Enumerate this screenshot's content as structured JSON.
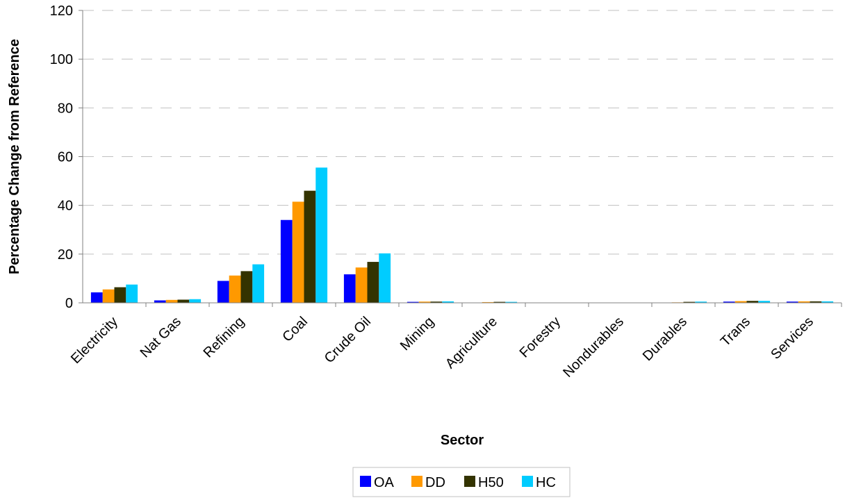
{
  "chart_data": {
    "type": "bar",
    "title": "",
    "xlabel": "Sector",
    "ylabel": "Percentage Change from Reference",
    "ylim": [
      0,
      120
    ],
    "yticks": [
      0,
      20,
      40,
      60,
      80,
      100,
      120
    ],
    "grid": true,
    "legend_position": "bottom",
    "categories": [
      "Electricity",
      "Nat Gas",
      "Refining",
      "Coal",
      "Crude Oil",
      "Mining",
      "Agriculture",
      "Forestry",
      "Nondurables",
      "Durables",
      "Trans",
      "Services"
    ],
    "series": [
      {
        "name": "OA",
        "color": "#0000FF",
        "values": [
          4.3,
          1.0,
          9.0,
          34.0,
          11.7,
          0.4,
          0.1,
          0.0,
          0.0,
          0.1,
          0.5,
          0.5
        ]
      },
      {
        "name": "DD",
        "color": "#FF9900",
        "values": [
          5.5,
          1.2,
          11.2,
          41.5,
          14.5,
          0.5,
          0.3,
          0.0,
          0.0,
          0.2,
          0.7,
          0.6
        ]
      },
      {
        "name": "H50",
        "color": "#333300",
        "values": [
          6.4,
          1.3,
          13.0,
          46.0,
          16.8,
          0.5,
          0.4,
          0.0,
          0.0,
          0.4,
          0.8,
          0.6
        ]
      },
      {
        "name": "HC",
        "color": "#00CCFF",
        "values": [
          7.5,
          1.5,
          15.8,
          55.5,
          20.3,
          0.6,
          0.4,
          0.0,
          0.0,
          0.5,
          0.8,
          0.6
        ]
      }
    ]
  }
}
